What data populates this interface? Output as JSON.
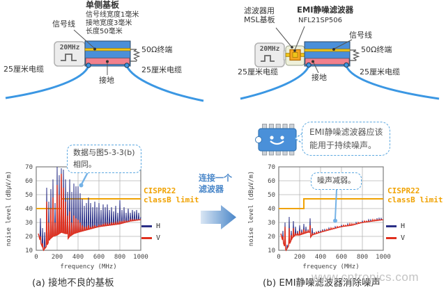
{
  "colors": {
    "h_series": "#2a2f86",
    "v_series": "#e0301e",
    "limit": "#f0a202",
    "cable": "#3b97e3",
    "accent_blue": "#4a87c9",
    "callout_border": "#5aa7e0",
    "board_blue": "#4a8fd9",
    "board_red": "#f2808d",
    "trace_yellow": "#f0c419",
    "component_orange": "#f5a623",
    "mascot_blue": "#4a90d9"
  },
  "diagram_left": {
    "title": "单侧基板",
    "spec1": "信号线宽度1毫米",
    "spec2": "接地宽度3毫米",
    "spec3": "长度50毫米",
    "signal_label": "信号线",
    "source_label": "20MHz",
    "termination_label": "50Ω终端",
    "cable_left": "25厘米电缆",
    "cable_right": "25厘米电缆",
    "ground_label": "接地"
  },
  "diagram_right": {
    "msl_label_line1": "滤波器用",
    "msl_label_line2": "MSL基板",
    "filter_label": "EMI静噪滤波器",
    "part_number": "NFL21SP506",
    "signal_label": "信号线",
    "source_label": "20MHz",
    "termination_label": "50Ω终端",
    "cable_left": "25厘米电缆",
    "cable_right": "25厘米电缆",
    "ground_label": "接地"
  },
  "middle": {
    "arrow_label_line1": "连接一个",
    "arrow_label_line2": "滤波器"
  },
  "mascot_bubble": {
    "line1": "EMI静噪滤波器应该",
    "line2": "能用于持续噪声。"
  },
  "watermark": "www.cntronics.com",
  "chart_data": [
    {
      "type": "line",
      "caption": "(a) 接地不良的基板",
      "xlabel": "frequency (MHz)",
      "ylabel": "noise level (dBμV/m)",
      "xlim": [
        0,
        1000
      ],
      "ylim": [
        10,
        70
      ],
      "xticks": [
        0,
        200,
        400,
        600,
        800,
        1000
      ],
      "yticks": [
        10,
        20,
        30,
        40,
        50,
        60,
        70
      ],
      "grid": true,
      "legend_position": "right",
      "callout": {
        "line1": "数据与图5-3-3(b)",
        "line2": "相同。"
      },
      "limit_line": {
        "label_line1": "CISPR22",
        "label_line2": "classB limit",
        "value_low": 40,
        "step_mhz": 240,
        "value_high": 47
      },
      "baseline": [
        [
          20,
          22
        ],
        [
          40,
          16
        ],
        [
          70,
          10
        ],
        [
          100,
          13
        ],
        [
          130,
          18
        ],
        [
          160,
          20
        ],
        [
          200,
          21
        ],
        [
          240,
          23
        ],
        [
          280,
          22
        ],
        [
          295,
          22
        ],
        [
          300,
          18
        ],
        [
          320,
          20
        ],
        [
          360,
          22
        ],
        [
          400,
          23
        ],
        [
          500,
          25
        ],
        [
          600,
          27
        ],
        [
          700,
          28
        ],
        [
          800,
          29
        ],
        [
          900,
          31
        ],
        [
          1000,
          32
        ]
      ],
      "series": [
        {
          "name": "H",
          "color": "#2a2f86",
          "peaks_step20": [
            22,
            33,
            26,
            23,
            55,
            45,
            54,
            61,
            44,
            70,
            64,
            69,
            68,
            61,
            52,
            61,
            52,
            58,
            56,
            56,
            51,
            47,
            42,
            44,
            48,
            44,
            41,
            45,
            41,
            44,
            39,
            43,
            41,
            43,
            39,
            41,
            38,
            42,
            37,
            46,
            39,
            41,
            37,
            40,
            37,
            39,
            38,
            39,
            37,
            34
          ]
        },
        {
          "name": "V",
          "color": "#e0301e",
          "peaks_step20": [
            22,
            20,
            15,
            12,
            45,
            30,
            40,
            48,
            30,
            57,
            50,
            65,
            55,
            45,
            35,
            38,
            30,
            35,
            33,
            32,
            30,
            28,
            27,
            27,
            28,
            27,
            27,
            28,
            27,
            28,
            28,
            29,
            29,
            29,
            29,
            30,
            30,
            30,
            30,
            31,
            31,
            31,
            31,
            31,
            32,
            32,
            32,
            32,
            32,
            32
          ]
        }
      ]
    },
    {
      "type": "line",
      "caption": "(b) EMI静噪滤波器消除噪声",
      "xlabel": "frequency (MHz)",
      "ylabel": "noise level (dBμV/m)",
      "xlim": [
        0,
        1000
      ],
      "ylim": [
        10,
        70
      ],
      "xticks": [
        0,
        200,
        400,
        600,
        800,
        1000
      ],
      "yticks": [
        10,
        20,
        30,
        40,
        50,
        60,
        70
      ],
      "grid": true,
      "legend_position": "right",
      "callout": {
        "line1": "噪声减弱。",
        "line2": ""
      },
      "limit_line": {
        "label_line1": "CISPR22",
        "label_line2": "classB limit",
        "value_low": 40,
        "step_mhz": 240,
        "value_high": 47
      },
      "baseline": [
        [
          20,
          22
        ],
        [
          40,
          16
        ],
        [
          70,
          10
        ],
        [
          100,
          14
        ],
        [
          130,
          19
        ],
        [
          160,
          21
        ],
        [
          200,
          21
        ],
        [
          240,
          22
        ],
        [
          280,
          23
        ],
        [
          295,
          23
        ],
        [
          300,
          19
        ],
        [
          320,
          21
        ],
        [
          360,
          22
        ],
        [
          400,
          23
        ],
        [
          500,
          25
        ],
        [
          600,
          27
        ],
        [
          700,
          28
        ],
        [
          800,
          30
        ],
        [
          900,
          31
        ],
        [
          1000,
          32
        ]
      ],
      "series": [
        {
          "name": "H",
          "color": "#2a2f86",
          "peaks_step20": [
            22,
            24,
            30,
            14,
            34,
            24,
            31,
            27,
            24,
            28,
            25,
            29,
            27,
            25,
            33,
            26,
            23,
            23,
            24,
            24,
            25,
            25,
            25,
            26,
            26,
            26,
            27,
            27,
            27,
            28,
            28,
            28,
            29,
            29,
            29,
            29,
            30,
            30,
            30,
            31,
            31,
            31,
            32,
            32,
            32,
            32,
            33,
            33,
            33,
            32
          ]
        },
        {
          "name": "V",
          "color": "#e0301e",
          "peaks_step20": [
            22,
            20,
            27,
            11,
            26,
            21,
            26,
            22,
            22,
            24,
            23,
            25,
            24,
            24,
            28,
            22,
            22,
            23,
            23,
            23,
            24,
            24,
            25,
            25,
            26,
            26,
            26,
            27,
            27,
            27,
            28,
            28,
            28,
            29,
            29,
            29,
            29,
            30,
            30,
            30,
            31,
            31,
            31,
            31,
            32,
            32,
            32,
            32,
            32,
            32
          ]
        }
      ]
    }
  ]
}
